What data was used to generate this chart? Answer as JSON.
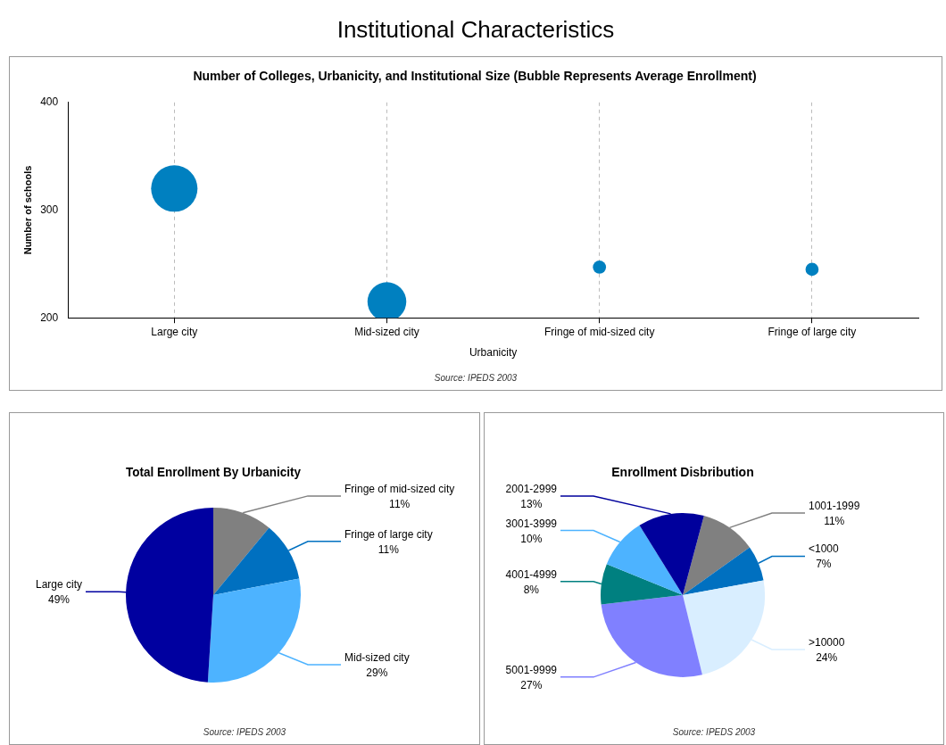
{
  "chart_data": [
    {
      "type": "other",
      "title": "Institutional Characteristics"
    },
    {
      "type": "bubble",
      "title": "Number of Colleges, Urbanicity, and Institutional Size (Bubble Represents Average Enrollment)",
      "categories": [
        "Large city",
        "Mid-sized city",
        "Fringe of mid-sized city",
        "Fringe of large city"
      ],
      "values": [
        320,
        215,
        247,
        245
      ],
      "sizes": [
        1,
        0.7,
        0.08,
        0.08
      ],
      "color": "#0080c0",
      "xlabel": "Urbanicity",
      "ylabel": "Number of schools",
      "ylim": [
        200,
        400
      ],
      "yticks": [
        200,
        300,
        400
      ],
      "grid": "x",
      "annotations": [
        "Source: IPEDS 2003"
      ]
    },
    {
      "type": "pie",
      "title": "Total Enrollment By Urbanicity",
      "categories": [
        "Fringe of mid-sized city",
        "Fringe of large city",
        "Mid-sized city",
        "Large city"
      ],
      "values": [
        11,
        11,
        29,
        49
      ],
      "value_labels": [
        "11%",
        "11%",
        "29%",
        "49%"
      ],
      "colors": [
        "#808080",
        "#0070c0",
        "#4db3ff",
        "#0000a0"
      ],
      "annotations": [
        "Source: IPEDS 2003"
      ]
    },
    {
      "type": "pie",
      "title": "Enrollment Disbribution",
      "categories": [
        "1001-1999",
        "<1000",
        ">10000",
        "5001-9999",
        "4001-4999",
        "3001-3999",
        "2001-2999"
      ],
      "values": [
        11,
        7,
        24,
        27,
        8,
        10,
        13
      ],
      "value_labels": [
        "11%",
        "7%",
        "24%",
        "27%",
        "8%",
        "10%",
        "13%"
      ],
      "colors": [
        "#808080",
        "#0070c0",
        "#d9eeff",
        "#8080ff",
        "#008080",
        "#4db3ff",
        "#00009c"
      ],
      "annotations": [
        "Source: IPEDS 2003"
      ]
    }
  ]
}
